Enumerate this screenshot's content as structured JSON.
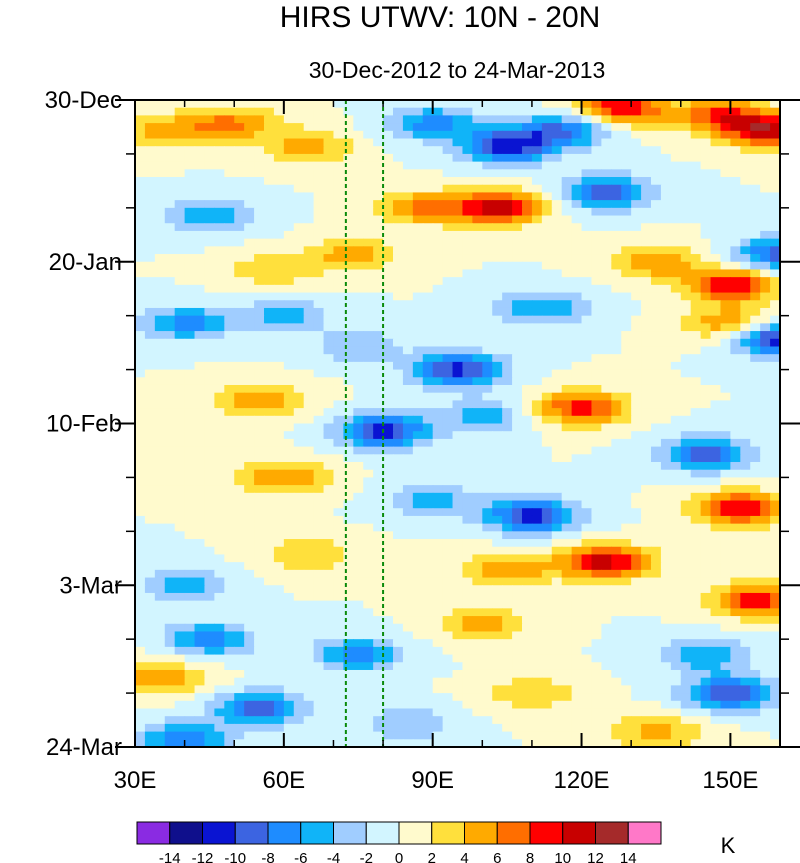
{
  "chart_data": {
    "type": "heatmap",
    "title": "HIRS UTWV: 10N - 20N",
    "subtitle": "30-Dec-2012 to 24-Mar-2013",
    "xlabel": "",
    "ylabel": "",
    "units": "K",
    "x_range": [
      30,
      160
    ],
    "x_ticks": [
      30,
      60,
      90,
      120,
      150
    ],
    "x_tick_labels": [
      "30E",
      "60E",
      "90E",
      "120E",
      "150E"
    ],
    "y_range_days": [
      0,
      84
    ],
    "y_ticks": [
      0,
      21,
      42,
      63,
      84
    ],
    "y_tick_labels": [
      "30-Dec",
      "20-Jan",
      "10-Feb",
      "3-Mar",
      "24-Mar"
    ],
    "reference_lines_lon": [
      72.5,
      80
    ],
    "contour_levels": [
      -14,
      -12,
      -10,
      -8,
      -6,
      -4,
      -2,
      0,
      2,
      4,
      6,
      8,
      10,
      12,
      14
    ],
    "colorbar_labels": [
      "-14",
      "-12",
      "-10",
      "-8",
      "-6",
      "-4",
      "-2",
      "0",
      "2",
      "4",
      "6",
      "8",
      "10",
      "12",
      "14"
    ],
    "colors": [
      "#8a2be2",
      "#0f0f8c",
      "#0a14d2",
      "#3c64e1",
      "#1e8cff",
      "#10b4f8",
      "#a0cdff",
      "#d2f5ff",
      "#fffacd",
      "#ffe03c",
      "#ffaa00",
      "#ff6e00",
      "#ff0000",
      "#c80000",
      "#a52a2a",
      "#ff78c8"
    ],
    "features": [
      {
        "lon": 50,
        "day": 3,
        "value": 6
      },
      {
        "lon": 37,
        "day": 4,
        "value": 5
      },
      {
        "lon": 65,
        "day": 6,
        "value": 5
      },
      {
        "lon": 90,
        "day": 3,
        "value": -7
      },
      {
        "lon": 105,
        "day": 6,
        "value": -11
      },
      {
        "lon": 116,
        "day": 4,
        "value": -8
      },
      {
        "lon": 128,
        "day": 1,
        "value": 10
      },
      {
        "lon": 148,
        "day": 2,
        "value": 8
      },
      {
        "lon": 158,
        "day": 4,
        "value": 11
      },
      {
        "lon": 103,
        "day": 14,
        "value": 11
      },
      {
        "lon": 88,
        "day": 14,
        "value": 6
      },
      {
        "lon": 125,
        "day": 12,
        "value": -9
      },
      {
        "lon": 45,
        "day": 15,
        "value": -6
      },
      {
        "lon": 74,
        "day": 20,
        "value": 5
      },
      {
        "lon": 58,
        "day": 22,
        "value": 4
      },
      {
        "lon": 150,
        "day": 24,
        "value": 10
      },
      {
        "lon": 135,
        "day": 21,
        "value": 6
      },
      {
        "lon": 160,
        "day": 20,
        "value": -9
      },
      {
        "lon": 40,
        "day": 29,
        "value": -7
      },
      {
        "lon": 60,
        "day": 28,
        "value": -5
      },
      {
        "lon": 75,
        "day": 32,
        "value": -4
      },
      {
        "lon": 112,
        "day": 27,
        "value": -6
      },
      {
        "lon": 160,
        "day": 31,
        "value": -12
      },
      {
        "lon": 150,
        "day": 29,
        "value": 6
      },
      {
        "lon": 95,
        "day": 35,
        "value": -11
      },
      {
        "lon": 55,
        "day": 39,
        "value": 6
      },
      {
        "lon": 120,
        "day": 40,
        "value": 9
      },
      {
        "lon": 80,
        "day": 43,
        "value": -11
      },
      {
        "lon": 100,
        "day": 41,
        "value": -5
      },
      {
        "lon": 145,
        "day": 46,
        "value": -9
      },
      {
        "lon": 60,
        "day": 49,
        "value": 6
      },
      {
        "lon": 110,
        "day": 54,
        "value": -11
      },
      {
        "lon": 90,
        "day": 52,
        "value": -5
      },
      {
        "lon": 152,
        "day": 53,
        "value": 10
      },
      {
        "lon": 65,
        "day": 59,
        "value": 4
      },
      {
        "lon": 125,
        "day": 60,
        "value": 11
      },
      {
        "lon": 105,
        "day": 61,
        "value": 6
      },
      {
        "lon": 40,
        "day": 63,
        "value": -5
      },
      {
        "lon": 155,
        "day": 65,
        "value": 9
      },
      {
        "lon": 45,
        "day": 70,
        "value": -7
      },
      {
        "lon": 100,
        "day": 68,
        "value": 5
      },
      {
        "lon": 75,
        "day": 72,
        "value": -7
      },
      {
        "lon": 145,
        "day": 72,
        "value": -6
      },
      {
        "lon": 35,
        "day": 75,
        "value": 6
      },
      {
        "lon": 55,
        "day": 79,
        "value": -9
      },
      {
        "lon": 110,
        "day": 77,
        "value": 4
      },
      {
        "lon": 150,
        "day": 77,
        "value": -10
      },
      {
        "lon": 85,
        "day": 81,
        "value": -4
      },
      {
        "lon": 135,
        "day": 82,
        "value": 5
      },
      {
        "lon": 40,
        "day": 83,
        "value": -8
      }
    ]
  }
}
